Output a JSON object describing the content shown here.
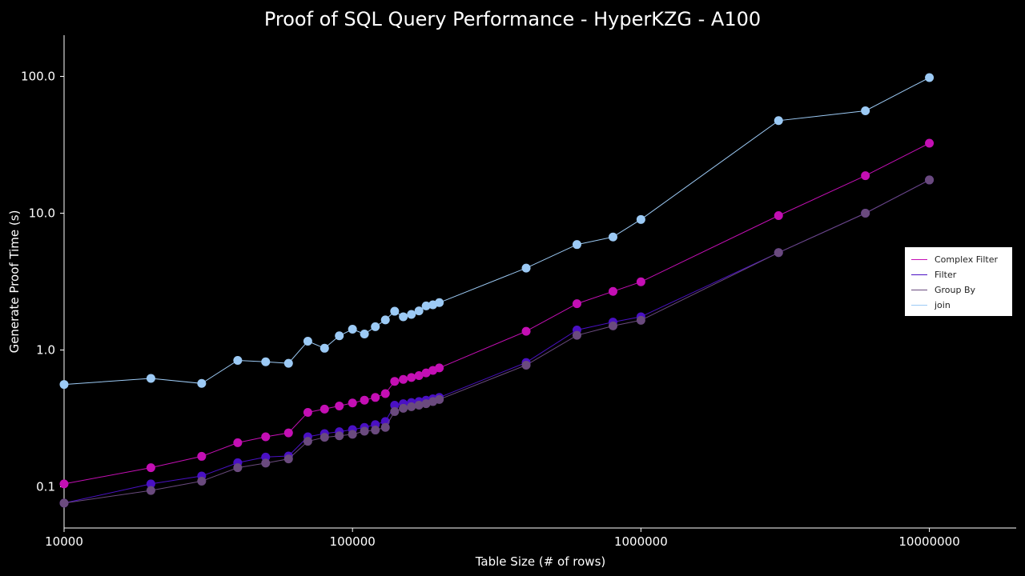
{
  "chart_data": {
    "type": "line",
    "title": "Proof of SQL Query Performance - HyperKZG - A100",
    "xlabel": "Table Size (# of rows)",
    "ylabel": "Generate Proof Time (s)",
    "xscale": "log",
    "yscale": "log",
    "xlim": [
      10000,
      20000000
    ],
    "ylim": [
      0.05,
      200
    ],
    "xticks": [
      {
        "value": 10000,
        "label": "10000"
      },
      {
        "value": 100000,
        "label": "100000"
      },
      {
        "value": 1000000,
        "label": "1000000"
      },
      {
        "value": 10000000,
        "label": "10000000"
      }
    ],
    "yticks": [
      {
        "value": 0.1,
        "label": "0.1"
      },
      {
        "value": 1,
        "label": "1.0"
      },
      {
        "value": 10,
        "label": "10.0"
      },
      {
        "value": 100,
        "label": "100.0"
      }
    ],
    "grid": false,
    "legend_position": "right",
    "series": [
      {
        "name": "Complex Filter",
        "color": "#c40fb4",
        "x": [
          10000,
          20000,
          30000,
          40000,
          50000,
          60000,
          70000,
          80000,
          90000,
          100000,
          110000,
          120000,
          130000,
          140000,
          150000,
          160000,
          170000,
          180000,
          190000,
          200000,
          400000,
          600000,
          800000,
          1000000,
          3000000,
          6000000,
          10000000
        ],
        "y": [
          0.105,
          0.138,
          0.167,
          0.21,
          0.232,
          0.248,
          0.35,
          0.37,
          0.39,
          0.41,
          0.43,
          0.45,
          0.48,
          0.59,
          0.61,
          0.63,
          0.65,
          0.68,
          0.71,
          0.74,
          1.37,
          2.18,
          2.68,
          3.15,
          9.6,
          18.8,
          32.5
        ]
      },
      {
        "name": "Filter",
        "color": "#4a10c4",
        "x": [
          10000,
          20000,
          30000,
          40000,
          50000,
          60000,
          70000,
          80000,
          90000,
          100000,
          110000,
          120000,
          130000,
          140000,
          150000,
          160000,
          170000,
          180000,
          190000,
          200000,
          400000,
          600000,
          800000,
          1000000,
          3000000,
          6000000,
          10000000
        ],
        "y": [
          0.076,
          0.105,
          0.12,
          0.15,
          0.165,
          0.168,
          0.232,
          0.245,
          0.253,
          0.262,
          0.272,
          0.285,
          0.3,
          0.395,
          0.405,
          0.413,
          0.42,
          0.43,
          0.44,
          0.45,
          0.81,
          1.4,
          1.6,
          1.75,
          5.15,
          10.0,
          17.5
        ]
      },
      {
        "name": "Group By",
        "color": "#6a4a7e",
        "x": [
          10000,
          20000,
          30000,
          40000,
          50000,
          60000,
          70000,
          80000,
          90000,
          100000,
          110000,
          120000,
          130000,
          140000,
          150000,
          160000,
          170000,
          180000,
          190000,
          200000,
          400000,
          600000,
          800000,
          1000000,
          3000000,
          6000000,
          10000000
        ],
        "y": [
          0.076,
          0.094,
          0.11,
          0.138,
          0.149,
          0.16,
          0.215,
          0.23,
          0.236,
          0.242,
          0.255,
          0.26,
          0.272,
          0.355,
          0.375,
          0.385,
          0.395,
          0.405,
          0.42,
          0.435,
          0.775,
          1.28,
          1.5,
          1.65,
          5.15,
          10.0,
          17.5
        ]
      },
      {
        "name": "join",
        "color": "#9ccaf5",
        "x": [
          10000,
          20000,
          30000,
          40000,
          50000,
          60000,
          70000,
          80000,
          90000,
          100000,
          110000,
          120000,
          130000,
          140000,
          150000,
          160000,
          170000,
          180000,
          190000,
          200000,
          400000,
          600000,
          800000,
          1000000,
          3000000,
          6000000,
          10000000
        ],
        "y": [
          0.56,
          0.62,
          0.57,
          0.84,
          0.82,
          0.8,
          1.16,
          1.03,
          1.27,
          1.42,
          1.31,
          1.48,
          1.66,
          1.92,
          1.75,
          1.82,
          1.93,
          2.1,
          2.14,
          2.22,
          3.97,
          5.9,
          6.7,
          9.0,
          47.5,
          56.0,
          98.0
        ]
      }
    ]
  }
}
